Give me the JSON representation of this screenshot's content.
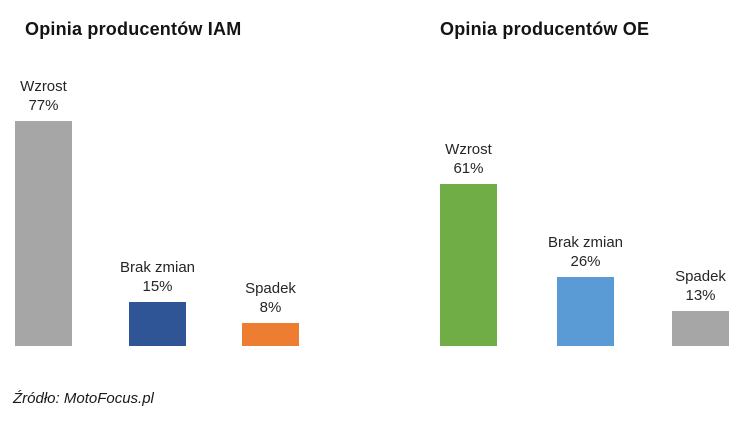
{
  "chart_data": [
    {
      "type": "bar",
      "title": "Opinia producentów IAM",
      "categories": [
        "Wzrost",
        "Brak zmian",
        "Spadek"
      ],
      "values": [
        77,
        15,
        8
      ],
      "value_labels": [
        "77%",
        "15%",
        "8%"
      ],
      "colors": [
        "#A6A6A6",
        "#2F5597",
        "#ED7D31"
      ],
      "xlabel": "",
      "ylabel": "",
      "ylim": [
        0,
        100
      ],
      "grid": "off",
      "axes": "hidden",
      "legend": "none",
      "data_labels": "above-bars"
    },
    {
      "type": "bar",
      "title": "Opinia producentów OE",
      "categories": [
        "Wzrost",
        "Brak zmian",
        "Spadek"
      ],
      "values": [
        61,
        26,
        13
      ],
      "value_labels": [
        "61%",
        "26%",
        "13%"
      ],
      "colors": [
        "#70AD47",
        "#5B9BD5",
        "#A6A6A6"
      ],
      "xlabel": "",
      "ylabel": "",
      "ylim": [
        0,
        100
      ],
      "grid": "off",
      "axes": "hidden",
      "legend": "none",
      "data_labels": "above-bars"
    }
  ],
  "source": {
    "text": "Źródło: MotoFocus.pl"
  }
}
